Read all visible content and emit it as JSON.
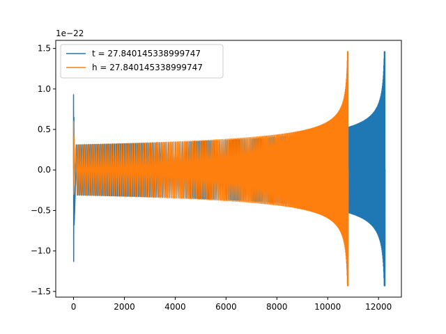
{
  "chart_data": {
    "type": "line",
    "title": "",
    "xlabel": "",
    "ylabel": "",
    "y_offset_label": "1e−22",
    "xlim": [
      -700,
      12900
    ],
    "ylim": [
      -1.57,
      1.6
    ],
    "x_ticks": [
      0,
      2000,
      4000,
      6000,
      8000,
      10000,
      12000
    ],
    "x_tick_labels": [
      "0",
      "2000",
      "4000",
      "6000",
      "8000",
      "10000",
      "12000"
    ],
    "y_ticks": [
      -1.5,
      -1.0,
      -0.5,
      0.0,
      0.5,
      1.0,
      1.5
    ],
    "y_tick_labels": [
      "−1.5",
      "−1.0",
      "−0.5",
      "0.0",
      "0.5",
      "1.0",
      "1.5"
    ],
    "grid": false,
    "legend_position": "top-left",
    "series": [
      {
        "name": "t = 27.840145338999747",
        "color": "#1f77b4",
        "start_x": 0,
        "end_x": 12280,
        "spike_x": 0,
        "spike_max": 0.93,
        "spike_min": -1.13,
        "plateau_start": 130,
        "merger_x": 12250,
        "base_amplitude": 0.31,
        "peak_max": 1.46,
        "peak_min": -1.43,
        "flat_after_merger": 0.0
      },
      {
        "name": "h = 27.840145338999747",
        "color": "#ff7f0e",
        "start_x": 0,
        "end_x": 10830,
        "spike_x": 0,
        "spike_max": 0.6,
        "spike_min": -0.3,
        "plateau_start": 100,
        "merger_x": 10800,
        "base_amplitude": 0.31,
        "peak_max": 1.46,
        "peak_min": -1.43,
        "flat_after_merger": 0.0
      }
    ]
  }
}
